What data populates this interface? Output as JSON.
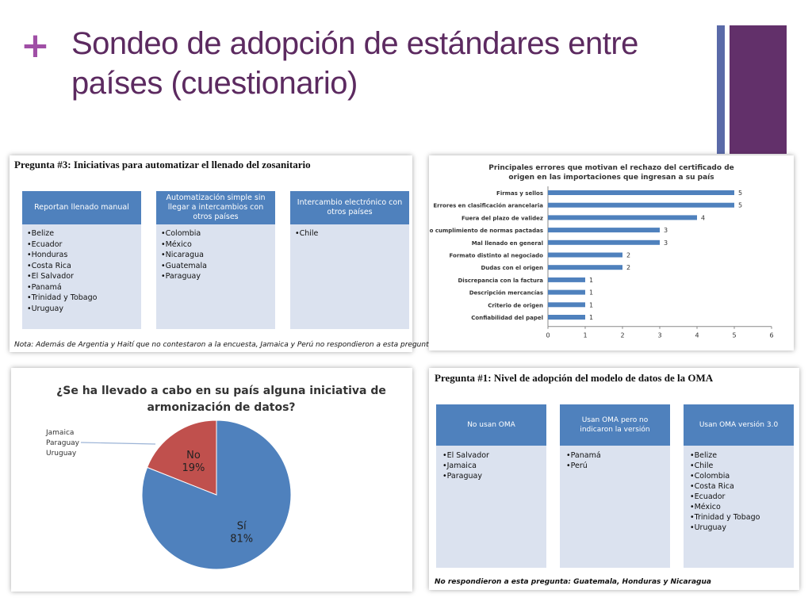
{
  "slide": {
    "plus_symbol": "+",
    "title": "Sondeo de adopción de estándares entre países (cuestionario)",
    "accent_colors": {
      "title": "#5c2a60",
      "plus": "#a04fa6",
      "bar_thin": "#5a6aa8",
      "bar_thick": "#62306a"
    }
  },
  "question3": {
    "title": "Pregunta #3: Iniciativas para automatizar el llenado del zosanitario",
    "columns": [
      {
        "header": "Reportan llenado manual",
        "items": [
          "•Belize",
          "•Ecuador",
          "•Honduras",
          "•Costa Rica",
          "•El Salvador",
          "•Panamá",
          "•Trinidad y Tobago",
          "•Uruguay"
        ]
      },
      {
        "header": "Automatización simple sin llegar a intercambios con otros países",
        "items": [
          "•Colombia",
          "•México",
          "•Nicaragua",
          "•Guatemala",
          "•Paraguay"
        ]
      },
      {
        "header": "Intercambio electrónico con otros países",
        "items": [
          "•Chile"
        ]
      }
    ],
    "note": "Nota: Además de Argentia y Haití que no contestaron a la encuesta, Jamaica y Perú no respondieron a esta pregunta."
  },
  "question1": {
    "title": "Pregunta #1: Nivel de adopción del modelo de datos de la OMA",
    "columns": [
      {
        "header": "No usan OMA",
        "items": [
          "•El Salvador",
          "•Jamaica",
          "•Paraguay"
        ]
      },
      {
        "header": "Usan OMA pero no indicaron la versión",
        "items": [
          "•Panamá",
          "•Perú"
        ]
      },
      {
        "header": "Usan OMA versión 3.0",
        "items": [
          "•Belize",
          "•Chile",
          "•Colombia",
          "•Costa Rica",
          "•Ecuador",
          "•México",
          "•Trinidad y Tobago",
          "•Uruguay"
        ]
      }
    ],
    "note": "No respondieron a esta pregunta: Guatemala, Honduras y Nicaragua"
  },
  "chart_data": [
    {
      "type": "bar",
      "orientation": "horizontal",
      "title": "Principales errores que motivan el rechazo del certificado de origen en las importaciones que ingresan a su país",
      "categories": [
        "Firmas y sellos",
        "Errores en clasificación arancelaria",
        "Fuera del plazo de validez",
        "No cumplimiento de normas pactadas",
        "Mal llenado en general",
        "Formato distinto al negociado",
        "Dudas con el origen",
        "Discrepancia con la factura",
        "Descripción mercancías",
        "Criterio de origen",
        "Confiabilidad del papel"
      ],
      "values": [
        5,
        5,
        4,
        3,
        3,
        2,
        2,
        1,
        1,
        1,
        1
      ],
      "xlim": [
        0,
        6
      ],
      "ticks": [
        "0",
        "1",
        "2",
        "3",
        "4",
        "5",
        "6"
      ],
      "color": "#4f81bd",
      "grid": false,
      "legend": "none"
    },
    {
      "type": "pie",
      "title": "¿Se ha llevado a cabo en su país alguna iniciativa de armonización de datos?",
      "slices": [
        {
          "label": "Sí",
          "value": 81,
          "display": "81%",
          "color": "#4f81bd"
        },
        {
          "label": "No",
          "value": 19,
          "display": "19%",
          "color": "#c0504d"
        }
      ],
      "annotation": [
        "Jamaica",
        "Paraguay",
        "Uruguay"
      ]
    }
  ]
}
